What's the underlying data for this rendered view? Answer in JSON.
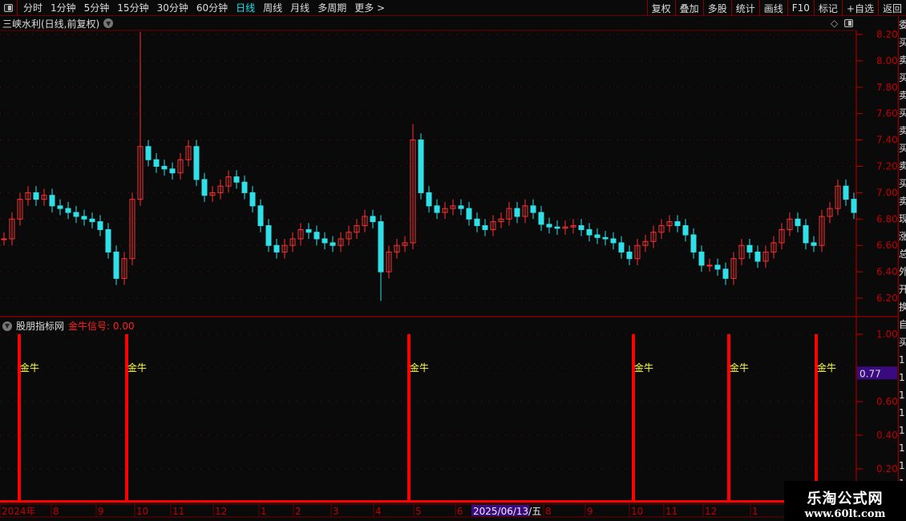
{
  "toolbar": {
    "periods": [
      "分时",
      "1分钟",
      "5分钟",
      "15分钟",
      "30分钟",
      "60分钟",
      "日线",
      "周线",
      "月线",
      "多周期",
      "更多 >"
    ],
    "active_period": "日线",
    "right_buttons": [
      "复权",
      "叠加",
      "多股",
      "统计",
      "画线",
      "F10",
      "标记",
      "+自选",
      "返回"
    ]
  },
  "chart_title": "三峡水利(日线,前复权)",
  "indicator": {
    "name": "股朋指标网",
    "signal_label": "金牛信号: 0.00",
    "marker_label": "金牛",
    "current_value_box": "0.77"
  },
  "colors": {
    "up": "#ff3030",
    "down": "#30e0e8",
    "signal": "#ff0000",
    "marker": "#ffff40",
    "axis": "#c00000",
    "grid": "#6a0000",
    "highlight": "#3a0a80"
  },
  "chart_data": [
    {
      "type": "candlestick",
      "title": "三峡水利(日线,前复权)",
      "ylim": [
        6.1,
        8.3
      ],
      "y_ticks": [
        "8.20",
        "8.00",
        "7.80",
        "7.60",
        "7.40",
        "7.20",
        "7.00",
        "6.80",
        "6.60",
        "6.40",
        "6.20"
      ],
      "closes": [
        6.65,
        6.8,
        6.95,
        7.0,
        6.95,
        6.98,
        6.9,
        6.88,
        6.85,
        6.82,
        6.8,
        6.78,
        6.72,
        6.55,
        6.35,
        6.5,
        6.95,
        7.35,
        7.25,
        7.2,
        7.18,
        7.15,
        7.25,
        7.35,
        7.1,
        6.98,
        7.0,
        7.05,
        7.12,
        7.08,
        7.0,
        6.9,
        6.75,
        6.6,
        6.55,
        6.6,
        6.65,
        6.72,
        6.7,
        6.65,
        6.62,
        6.6,
        6.65,
        6.7,
        6.75,
        6.82,
        6.78,
        6.4,
        6.55,
        6.6,
        6.62,
        7.4,
        7.0,
        6.9,
        6.85,
        6.88,
        6.9,
        6.88,
        6.8,
        6.75,
        6.72,
        6.78,
        6.8,
        6.88,
        6.82,
        6.9,
        6.85,
        6.76,
        6.74,
        6.73,
        6.74,
        6.75,
        6.72,
        6.68,
        6.66,
        6.65,
        6.62,
        6.55,
        6.5,
        6.6,
        6.63,
        6.7,
        6.75,
        6.78,
        6.75,
        6.68,
        6.55,
        6.45,
        6.45,
        6.42,
        6.35,
        6.5,
        6.6,
        6.55,
        6.48,
        6.55,
        6.62,
        6.72,
        6.8,
        6.75,
        6.62,
        6.6,
        6.82,
        6.88,
        7.05,
        6.95,
        6.85
      ],
      "max_high": 8.22,
      "min_low": 6.18
    },
    {
      "type": "bar",
      "title": "金牛信号",
      "ylim": [
        0,
        1.05
      ],
      "y_ticks": [
        "1.00",
        "0.60",
        "0.40",
        "0.20"
      ],
      "signal_values": [
        1,
        1,
        1,
        1,
        1,
        1
      ],
      "signal_dates": [
        "2024年7月",
        "2024年9月",
        "2025年4月",
        "2025年10月",
        "2025年12月",
        "2026年1月"
      ]
    }
  ],
  "time_axis": {
    "labels": [
      "2024年",
      "8",
      "9",
      "10",
      "11",
      "12",
      "1",
      "2",
      "3",
      "4",
      "5",
      "6",
      "8",
      "9",
      "10",
      "11",
      "12",
      "1"
    ],
    "cursor_date": "2025/06/13/五"
  },
  "right_column_chars": [
    "委",
    "买",
    "卖",
    "买",
    "卖",
    "买",
    "卖",
    "买",
    "卖",
    "买",
    "卖",
    "现",
    "涨",
    "总",
    "外",
    "开",
    "换",
    "自",
    "买",
    "1",
    "1",
    "1",
    "1",
    "1",
    "1",
    "1",
    "1"
  ],
  "watermark": {
    "name": "乐淘公式网",
    "url": "www.60lt.com"
  }
}
